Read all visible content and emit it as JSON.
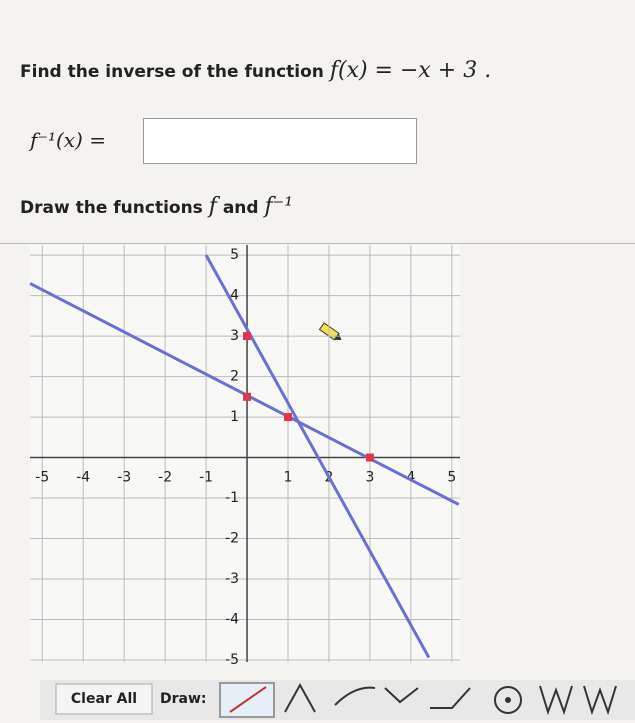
{
  "question": {
    "prefix": "Find the inverse of the function",
    "function": "f(x) = −x + 3 ."
  },
  "answer_label": "f⁻¹(x) =",
  "draw_prompt": {
    "text": "Draw the functions",
    "f": "f",
    "and": "and",
    "finv": "f⁻¹"
  },
  "chart_data": {
    "type": "line",
    "xlim": [
      -5.3,
      5.2
    ],
    "ylim": [
      -5.05,
      5.25
    ],
    "xticks": [
      -5,
      -4,
      -3,
      -2,
      -1,
      1,
      2,
      3,
      4,
      5
    ],
    "yticks": [
      -5,
      -4,
      -3,
      -2,
      -1,
      1,
      2,
      3,
      4,
      5
    ],
    "grid": true,
    "series": [
      {
        "color": "#6b70d6",
        "x": [
          -5.3,
          5.17
        ],
        "values": [
          4.3,
          -1.16
        ]
      },
      {
        "color": "#6b70d6",
        "x": [
          -1,
          4.44
        ],
        "values": [
          5,
          -4.94
        ]
      }
    ],
    "points": {
      "color": "#e0354a",
      "x": [
        0,
        1,
        0,
        3
      ],
      "values": [
        3,
        1,
        1.5,
        0
      ]
    }
  },
  "toolbar": {
    "clear": "Clear All",
    "draw": "Draw:"
  }
}
